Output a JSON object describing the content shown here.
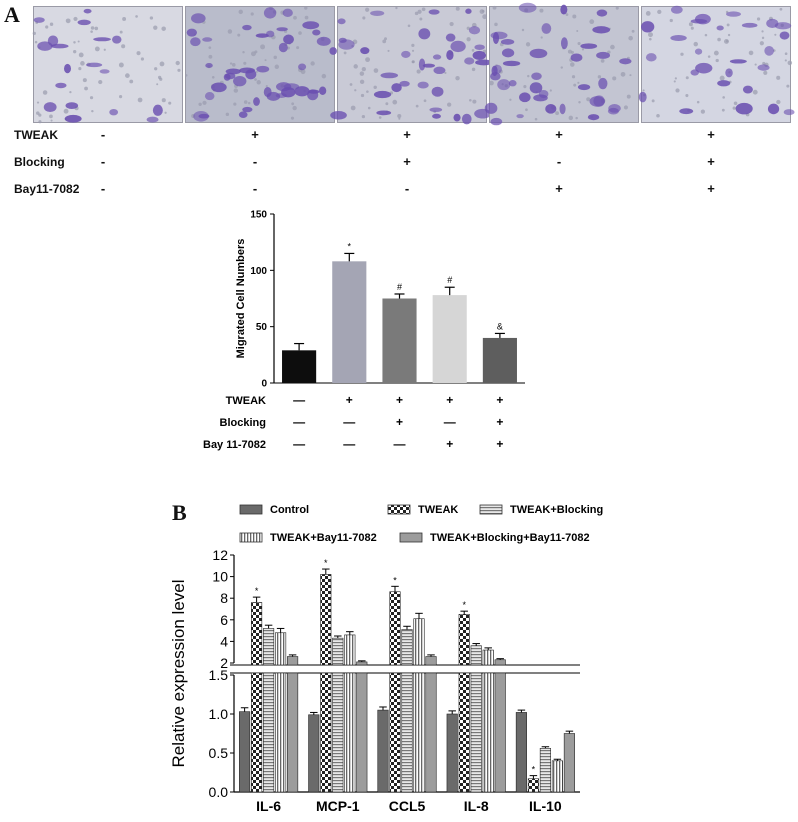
{
  "panel_a": {
    "letter": "A",
    "conditions": [
      {
        "label": "TWEAK",
        "signs": [
          "-",
          "+",
          "+",
          "+",
          "+"
        ]
      },
      {
        "label": "Blocking",
        "signs": [
          "-",
          "-",
          "+",
          "-",
          "+"
        ]
      },
      {
        "label": "Bay11-7082",
        "signs": [
          "-",
          "-",
          "-",
          "+",
          "+"
        ]
      }
    ]
  },
  "panel_b": {
    "letter": "B"
  },
  "chart_data": [
    {
      "type": "bar",
      "ylabel": "Migrated Cell Numbers",
      "ylim": [
        0,
        150
      ],
      "yticks": [
        "0",
        "50",
        "100",
        "150"
      ],
      "values": [
        29,
        108,
        75,
        78,
        40
      ],
      "errors": [
        6,
        7,
        4,
        7,
        4
      ],
      "colors": [
        "#0d0d0d",
        "#a4a5b4",
        "#7a7a7a",
        "#d6d6d6",
        "#5e5e5e"
      ],
      "annotations": [
        "",
        "*",
        "#",
        "#",
        "&"
      ],
      "condition_rows": [
        {
          "label": "TWEAK",
          "signs": [
            "—",
            "+",
            "+",
            "+",
            "+"
          ]
        },
        {
          "label": "Blocking",
          "signs": [
            "—",
            "—",
            "+",
            "—",
            "+"
          ]
        },
        {
          "label": "Bay 11-7082",
          "signs": [
            "—",
            "—",
            "—",
            "+",
            "+"
          ]
        }
      ]
    },
    {
      "type": "bar",
      "ylabel": "Relative expression level",
      "categories": [
        "IL-6",
        "MCP-1",
        "CCL5",
        "IL-8",
        "IL-10"
      ],
      "axis_break": true,
      "upper_ylim": [
        2,
        12
      ],
      "upper_yticks": [
        "2",
        "4",
        "6",
        "8",
        "10",
        "12"
      ],
      "lower_ylim": [
        0,
        1.5
      ],
      "lower_yticks": [
        "0.0",
        "0.5",
        "1.0",
        "1.5"
      ],
      "legend_position": "top",
      "series": [
        {
          "name": "Control",
          "values": [
            1.03,
            0.99,
            1.05,
            1.0,
            1.02
          ],
          "errors": [
            0.05,
            0.03,
            0.04,
            0.04,
            0.03
          ],
          "color": "#6a6a6a",
          "pattern": "solid"
        },
        {
          "name": "TWEAK",
          "values": [
            7.6,
            10.2,
            8.6,
            6.5,
            0.17
          ],
          "errors": [
            0.5,
            0.5,
            0.5,
            0.3,
            0.04
          ],
          "color": "#3a3a3a",
          "pattern": "checker"
        },
        {
          "name": "TWEAK+Blocking",
          "values": [
            5.2,
            4.3,
            5.1,
            3.6,
            0.56
          ],
          "errors": [
            0.3,
            0.2,
            0.3,
            0.2,
            0.02
          ],
          "color": "#9a9a9a",
          "pattern": "hstripe"
        },
        {
          "name": "TWEAK+Bay11-7082",
          "values": [
            4.8,
            4.6,
            6.1,
            3.2,
            0.4
          ],
          "errors": [
            0.4,
            0.3,
            0.5,
            0.2,
            0.02
          ],
          "color": "#8a8a8a",
          "pattern": "vstripe"
        },
        {
          "name": "TWEAK+Blocking+Bay11-7082",
          "values": [
            2.6,
            2.1,
            2.6,
            2.3,
            0.75
          ],
          "errors": [
            0.15,
            0.1,
            0.15,
            0.1,
            0.03
          ],
          "color": "#9c9c9c",
          "pattern": "solid"
        }
      ],
      "annotations": [
        "*",
        "*",
        "*",
        "*",
        "*"
      ]
    }
  ]
}
